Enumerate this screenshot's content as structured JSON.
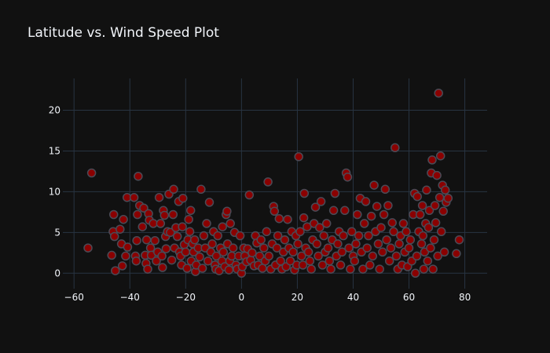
{
  "colors": {
    "background": "#111111",
    "grid": "#283442",
    "text": "#f2f5fa",
    "marker_fill": "#8b0000",
    "marker_edge": "#4a4a55"
  },
  "chart_data": {
    "type": "scatter",
    "title": "Latitude vs. Wind Speed Plot",
    "xlabel": "",
    "ylabel": "",
    "xlim": [
      -64,
      88
    ],
    "ylim": [
      -1.9,
      23.9
    ],
    "x_ticks": [
      -60,
      -40,
      -20,
      0,
      20,
      40,
      60,
      80
    ],
    "y_ticks": [
      0,
      5,
      10,
      15,
      20
    ],
    "x_tick_labels": [
      "−60",
      "−40",
      "−20",
      "0",
      "20",
      "40",
      "60",
      "80"
    ],
    "y_tick_labels": [
      "0",
      "5",
      "10",
      "15",
      "20"
    ],
    "grid": true,
    "legend": "none",
    "points": [
      [
        -55,
        3.1
      ],
      [
        -53.7,
        12.3
      ],
      [
        -46.5,
        2.2
      ],
      [
        -46,
        5.1
      ],
      [
        -45.8,
        7.2
      ],
      [
        -45.5,
        4.5
      ],
      [
        -45.2,
        0.3
      ],
      [
        -43.5,
        5.4
      ],
      [
        -43,
        3.6
      ],
      [
        -42.7,
        0.9
      ],
      [
        -42.3,
        6.6
      ],
      [
        -41.5,
        2.1
      ],
      [
        -41,
        9.3
      ],
      [
        -40.8,
        3.2
      ],
      [
        -38.5,
        9.3
      ],
      [
        -38,
        2.1
      ],
      [
        -37.7,
        1.5
      ],
      [
        -37.5,
        4.0
      ],
      [
        -37.3,
        7.2
      ],
      [
        -37,
        11.9
      ],
      [
        -36.5,
        8.3
      ],
      [
        -35.5,
        5.7
      ],
      [
        -35,
        8.0
      ],
      [
        -34.5,
        2.2
      ],
      [
        -34.2,
        1.2
      ],
      [
        -34,
        4.1
      ],
      [
        -33.6,
        0.5
      ],
      [
        -33.3,
        7.3
      ],
      [
        -33,
        6.5
      ],
      [
        -32.6,
        3.1
      ],
      [
        -32.3,
        2.2
      ],
      [
        -31.6,
        6.1
      ],
      [
        -31,
        4.0
      ],
      [
        -30.5,
        1.5
      ],
      [
        -30,
        2.6
      ],
      [
        -29.5,
        9.3
      ],
      [
        -29,
        6.1
      ],
      [
        -28.5,
        2.1
      ],
      [
        -28.3,
        0.7
      ],
      [
        -28,
        7.7
      ],
      [
        -27.6,
        7.1
      ],
      [
        -27.2,
        4.5
      ],
      [
        -27,
        3.0
      ],
      [
        -26.5,
        5.1
      ],
      [
        -26,
        9.7
      ],
      [
        -25.5,
        5.0
      ],
      [
        -25,
        1.6
      ],
      [
        -24.5,
        7.2
      ],
      [
        -24.3,
        10.3
      ],
      [
        -24,
        3.1
      ],
      [
        -23.5,
        5.6
      ],
      [
        -23,
        4.5
      ],
      [
        -22.5,
        8.8
      ],
      [
        -22.2,
        2.6
      ],
      [
        -21.8,
        2.1
      ],
      [
        -21.5,
        1.0
      ],
      [
        -21.2,
        5.7
      ],
      [
        -21,
        9.2
      ],
      [
        -20.5,
        3.5
      ],
      [
        -20,
        2.6
      ],
      [
        -19.5,
        0.6
      ],
      [
        -19.2,
        4.1
      ],
      [
        -18.9,
        6.6
      ],
      [
        -18.5,
        5.1
      ],
      [
        -18.2,
        7.7
      ],
      [
        -18,
        1.5
      ],
      [
        -17.5,
        3.6
      ],
      [
        -17.2,
        2.6
      ],
      [
        -16.8,
        4.1
      ],
      [
        -16.5,
        0.2
      ],
      [
        -16.2,
        1.0
      ],
      [
        -15.5,
        3.1
      ],
      [
        -15,
        2.0
      ],
      [
        -14.5,
        10.3
      ],
      [
        -14,
        0.6
      ],
      [
        -13.5,
        4.6
      ],
      [
        -13,
        3.1
      ],
      [
        -12.5,
        6.1
      ],
      [
        -12,
        1.5
      ],
      [
        -11.5,
        8.7
      ],
      [
        -11,
        2.6
      ],
      [
        -10.5,
        3.6
      ],
      [
        -10,
        5.1
      ],
      [
        -9.5,
        1.0
      ],
      [
        -9.2,
        0.5
      ],
      [
        -9,
        2.1
      ],
      [
        -8.5,
        4.6
      ],
      [
        -8,
        0.3
      ],
      [
        -7.5,
        3.1
      ],
      [
        -7,
        1.5
      ],
      [
        -6.8,
        5.7
      ],
      [
        -6.5,
        2.6
      ],
      [
        -6,
        0.8
      ],
      [
        -5.5,
        7.2
      ],
      [
        -5.2,
        7.6
      ],
      [
        -5,
        3.6
      ],
      [
        -4.5,
        0.4
      ],
      [
        -4.2,
        1.5
      ],
      [
        -4,
        6.1
      ],
      [
        -3.5,
        2.1
      ],
      [
        -3,
        3.1
      ],
      [
        -2.5,
        5.0
      ],
      [
        -2,
        1.0
      ],
      [
        -1.5,
        0.5
      ],
      [
        -1,
        2.1
      ],
      [
        -0.5,
        4.6
      ],
      [
        0,
        0.0
      ],
      [
        0.3,
        0.8
      ],
      [
        0.8,
        3.1
      ],
      [
        1.2,
        2.1
      ],
      [
        1.8,
        1.4
      ],
      [
        2.2,
        3.0
      ],
      [
        2.8,
        9.6
      ],
      [
        3.3,
        1.6
      ],
      [
        3.8,
        2.5
      ],
      [
        4.5,
        0.9
      ],
      [
        5,
        4.6
      ],
      [
        5.5,
        3.7
      ],
      [
        6,
        1.0
      ],
      [
        6.5,
        2.1
      ],
      [
        7,
        4.1
      ],
      [
        7.5,
        0.6
      ],
      [
        8,
        3.1
      ],
      [
        8.5,
        1.5
      ],
      [
        9,
        5.1
      ],
      [
        9.5,
        11.2
      ],
      [
        9.8,
        2.1
      ],
      [
        10.5,
        0.5
      ],
      [
        11,
        3.6
      ],
      [
        11.5,
        8.2
      ],
      [
        11.8,
        7.6
      ],
      [
        12.2,
        1.0
      ],
      [
        12.7,
        3.1
      ],
      [
        13,
        4.6
      ],
      [
        13.5,
        6.7
      ],
      [
        14,
        1.5
      ],
      [
        14.5,
        0.5
      ],
      [
        15,
        2.6
      ],
      [
        15.5,
        4.1
      ],
      [
        16,
        0.8
      ],
      [
        16.5,
        6.6
      ],
      [
        17,
        3.1
      ],
      [
        17.5,
        1.5
      ],
      [
        18,
        5.1
      ],
      [
        18.5,
        2.6
      ],
      [
        19,
        0.4
      ],
      [
        19.5,
        4.6
      ],
      [
        19.8,
        1.0
      ],
      [
        20.2,
        3.6
      ],
      [
        20.5,
        14.3
      ],
      [
        21,
        5.1
      ],
      [
        21.5,
        2.1
      ],
      [
        22,
        1.0
      ],
      [
        22.3,
        6.8
      ],
      [
        22.5,
        9.8
      ],
      [
        23,
        3.1
      ],
      [
        23.5,
        5.7
      ],
      [
        24,
        2.6
      ],
      [
        24.5,
        1.5
      ],
      [
        25,
        0.5
      ],
      [
        25.5,
        4.1
      ],
      [
        26,
        6.1
      ],
      [
        26.5,
        8.1
      ],
      [
        27,
        3.6
      ],
      [
        27.5,
        2.1
      ],
      [
        28,
        5.6
      ],
      [
        28.5,
        8.8
      ],
      [
        29,
        1.0
      ],
      [
        29.5,
        4.6
      ],
      [
        30,
        2.6
      ],
      [
        30.5,
        6.1
      ],
      [
        31,
        3.1
      ],
      [
        31.5,
        1.5
      ],
      [
        32,
        0.5
      ],
      [
        32.5,
        4.1
      ],
      [
        33,
        7.7
      ],
      [
        33.5,
        9.8
      ],
      [
        34,
        2.1
      ],
      [
        34.5,
        3.6
      ],
      [
        35,
        5.1
      ],
      [
        35.5,
        1.0
      ],
      [
        36,
        2.6
      ],
      [
        36.5,
        4.6
      ],
      [
        37,
        7.7
      ],
      [
        37.5,
        12.3
      ],
      [
        38,
        11.8
      ],
      [
        38.5,
        3.1
      ],
      [
        39,
        0.5
      ],
      [
        39.5,
        5.1
      ],
      [
        40,
        2.1
      ],
      [
        40.5,
        1.5
      ],
      [
        41,
        3.6
      ],
      [
        41.5,
        7.2
      ],
      [
        42,
        4.6
      ],
      [
        42.5,
        9.2
      ],
      [
        43,
        2.6
      ],
      [
        43.5,
        0.5
      ],
      [
        44,
        6.1
      ],
      [
        44.5,
        8.8
      ],
      [
        45,
        3.1
      ],
      [
        45.5,
        4.6
      ],
      [
        46,
        1.0
      ],
      [
        46.5,
        7.0
      ],
      [
        47,
        2.1
      ],
      [
        47.5,
        10.8
      ],
      [
        48,
        5.1
      ],
      [
        48.5,
        8.2
      ],
      [
        49,
        3.6
      ],
      [
        49.5,
        0.5
      ],
      [
        50,
        5.6
      ],
      [
        50.5,
        2.6
      ],
      [
        51,
        7.2
      ],
      [
        51.5,
        10.3
      ],
      [
        52,
        4.1
      ],
      [
        52.5,
        8.3
      ],
      [
        53,
        1.5
      ],
      [
        53.5,
        3.1
      ],
      [
        54,
        6.2
      ],
      [
        54.5,
        5.1
      ],
      [
        55,
        15.4
      ],
      [
        55.5,
        2.1
      ],
      [
        56,
        0.5
      ],
      [
        56.5,
        3.6
      ],
      [
        57,
        4.6
      ],
      [
        57.5,
        1.0
      ],
      [
        58,
        6.1
      ],
      [
        58.5,
        2.6
      ],
      [
        59,
        5.1
      ],
      [
        59.5,
        0.8
      ],
      [
        60,
        3.1
      ],
      [
        60.5,
        4.1
      ],
      [
        61,
        1.5
      ],
      [
        61.5,
        7.2
      ],
      [
        62,
        9.8
      ],
      [
        62.3,
        0.0
      ],
      [
        62.8,
        2.1
      ],
      [
        63,
        9.4
      ],
      [
        63.5,
        5.1
      ],
      [
        64,
        7.2
      ],
      [
        64.5,
        3.6
      ],
      [
        64.8,
        8.3
      ],
      [
        65,
        4.6
      ],
      [
        65.3,
        0.5
      ],
      [
        65.6,
        2.6
      ],
      [
        66,
        6.1
      ],
      [
        66.3,
        10.2
      ],
      [
        66.7,
        1.5
      ],
      [
        67,
        5.6
      ],
      [
        67.3,
        7.7
      ],
      [
        67.7,
        3.1
      ],
      [
        68,
        12.3
      ],
      [
        68.3,
        13.9
      ],
      [
        68.6,
        0.5
      ],
      [
        69,
        4.1
      ],
      [
        69.3,
        8.3
      ],
      [
        69.6,
        6.2
      ],
      [
        70,
        12.0
      ],
      [
        70.3,
        2.1
      ],
      [
        70.6,
        22.1
      ],
      [
        71,
        9.3
      ],
      [
        71.3,
        14.4
      ],
      [
        71.6,
        5.1
      ],
      [
        72,
        10.8
      ],
      [
        72.3,
        7.6
      ],
      [
        72.7,
        2.6
      ],
      [
        73,
        10.2
      ],
      [
        73.3,
        8.7
      ],
      [
        74,
        9.2
      ],
      [
        77,
        2.4
      ],
      [
        78,
        4.1
      ]
    ]
  }
}
